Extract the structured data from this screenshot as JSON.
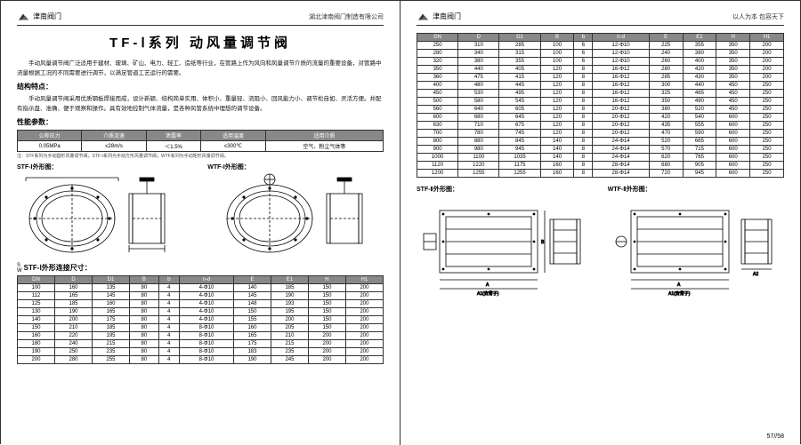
{
  "brand": "津南阀门",
  "company": "湖北津南阀门制造有限公司",
  "slogan": "以人为本  包容天下",
  "title": "TF-Ⅰ系列  动风量调节阀",
  "p1": "手动风量调节阀广泛适用于建材、玻璃、矿山、电力、轻工、造纸等行业，在管路上作为风向和风量调节介质的流量的重要设备，对管路中流量根据工况的不同需要进行调节，以满足管道工艺运行的需要。",
  "p2": "手动风量调节阀采用优质钢板焊接而成，设计新颖、结构简单实用、体积小、重量轻、流阻小、回风能力小、调节松自如、灵活方便。并配有指示盘、准确、便于观察和操作。具有效地控制气体流量，是各种风管系统中理想的调节设备。",
  "sec1": "结构特点：",
  "sec2": "性能参数：",
  "perf_cols": [
    "公称压力",
    "介质流速",
    "泄露率",
    "适用温度",
    "适用介质"
  ],
  "perf_row": [
    "0.05MPa",
    "≤28m/s",
    "＜1.5%",
    "≤300℃",
    "空气、粉尘气体等"
  ],
  "perf_note": "注：STF系列为手动圆形风量调节阀；STF-I系列为手动方形风量调节阀；WTF系列为手动矩形风量调节阀。",
  "dwg1": "STF-Ⅰ外形图：",
  "dwg2": "WTF-Ⅰ外形图：",
  "sec3": "STF-Ⅰ外形连接尺寸：",
  "sec3_prefix": "S\nW",
  "t1_cols": [
    "DN",
    "D",
    "D1",
    "B",
    "b",
    "n-d",
    "E",
    "E1",
    "H",
    "H1"
  ],
  "t1_rows": [
    [
      "100",
      "160",
      "135",
      "80",
      "4",
      "4-Φ10",
      "140",
      "185",
      "150",
      "200"
    ],
    [
      "112",
      "165",
      "145",
      "80",
      "4",
      "4-Φ10",
      "145",
      "190",
      "150",
      "200"
    ],
    [
      "125",
      "185",
      "160",
      "80",
      "4",
      "4-Φ10",
      "148",
      "193",
      "150",
      "200"
    ],
    [
      "130",
      "190",
      "165",
      "80",
      "4",
      "4-Φ10",
      "150",
      "195",
      "150",
      "200"
    ],
    [
      "140",
      "200",
      "175",
      "80",
      "4",
      "4-Φ10",
      "155",
      "200",
      "150",
      "200"
    ],
    [
      "150",
      "210",
      "185",
      "80",
      "4",
      "8-Φ10",
      "160",
      "205",
      "150",
      "200"
    ],
    [
      "160",
      "220",
      "195",
      "80",
      "4",
      "8-Φ10",
      "165",
      "210",
      "200",
      "200"
    ],
    [
      "180",
      "240",
      "215",
      "80",
      "4",
      "8-Φ10",
      "175",
      "215",
      "200",
      "200"
    ],
    [
      "190",
      "250",
      "235",
      "80",
      "4",
      "8-Φ10",
      "183",
      "235",
      "200",
      "200"
    ],
    [
      "200",
      "280",
      "255",
      "80",
      "4",
      "8-Φ10",
      "190",
      "245",
      "200",
      "200"
    ]
  ],
  "t2_rows": [
    [
      "250",
      "310",
      "285",
      "100",
      "6",
      "12-Φ10",
      "225",
      "355",
      "350",
      "200"
    ],
    [
      "280",
      "340",
      "315",
      "100",
      "6",
      "12-Φ10",
      "240",
      "380",
      "350",
      "200"
    ],
    [
      "320",
      "380",
      "355",
      "100",
      "6",
      "12-Φ10",
      "260",
      "400",
      "350",
      "200"
    ],
    [
      "350",
      "440",
      "405",
      "120",
      "8",
      "16-Φ12",
      "280",
      "420",
      "350",
      "200"
    ],
    [
      "360",
      "475",
      "415",
      "120",
      "8",
      "16-Φ12",
      "285",
      "430",
      "350",
      "200"
    ],
    [
      "400",
      "480",
      "445",
      "120",
      "8",
      "16-Φ12",
      "300",
      "440",
      "450",
      "250"
    ],
    [
      "450",
      "530",
      "495",
      "120",
      "8",
      "16-Φ12",
      "325",
      "465",
      "450",
      "250"
    ],
    [
      "500",
      "580",
      "545",
      "120",
      "8",
      "16-Φ12",
      "350",
      "490",
      "450",
      "250"
    ],
    [
      "560",
      "640",
      "605",
      "120",
      "8",
      "20-Φ12",
      "380",
      "520",
      "450",
      "250"
    ],
    [
      "600",
      "680",
      "645",
      "120",
      "8",
      "20-Φ12",
      "420",
      "540",
      "600",
      "250"
    ],
    [
      "630",
      "710",
      "675",
      "120",
      "8",
      "20-Φ12",
      "435",
      "555",
      "600",
      "250"
    ],
    [
      "700",
      "780",
      "745",
      "120",
      "8",
      "20-Φ12",
      "470",
      "590",
      "600",
      "250"
    ],
    [
      "800",
      "880",
      "845",
      "140",
      "8",
      "24-Φ14",
      "520",
      "665",
      "600",
      "250"
    ],
    [
      "900",
      "980",
      "945",
      "140",
      "8",
      "24-Φ14",
      "570",
      "715",
      "600",
      "250"
    ],
    [
      "1000",
      "1100",
      "1035",
      "140",
      "8",
      "24-Φ14",
      "620",
      "765",
      "600",
      "250"
    ],
    [
      "1120",
      "1220",
      "1175",
      "160",
      "8",
      "28-Φ14",
      "680",
      "905",
      "600",
      "250"
    ],
    [
      "1200",
      "1255",
      "1255",
      "160",
      "8",
      "28-Φ14",
      "720",
      "945",
      "600",
      "250"
    ]
  ],
  "dwg3": "STF-Ⅱ外形图：",
  "dwg4": "WTF-Ⅱ外形图：",
  "pagenum": "57//58"
}
